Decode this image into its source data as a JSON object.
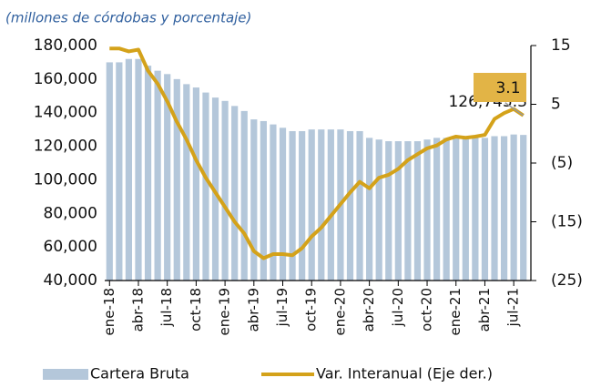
{
  "chart_data": {
    "type": "bar_line",
    "subtitle": "(millones de córdobas y porcentaje)",
    "categories": [
      "ene-18",
      null,
      null,
      "abr-18",
      null,
      null,
      "jul-18",
      null,
      null,
      "oct-18",
      null,
      null,
      "ene-19",
      null,
      null,
      "abr-19",
      null,
      null,
      "jul-19",
      null,
      null,
      "oct-19",
      null,
      null,
      "ene-20",
      null,
      null,
      "abr-20",
      null,
      null,
      "jul-20",
      null,
      null,
      "oct-20",
      null,
      null,
      "ene-21",
      null,
      null,
      "abr-21",
      null,
      null,
      "jul-21",
      null
    ],
    "series": [
      {
        "name": "Cartera Bruta",
        "color": "#b4c7da",
        "axis": "y",
        "values": [
          170000,
          170000,
          172000,
          172000,
          168000,
          165000,
          163000,
          160000,
          157000,
          155000,
          152000,
          149000,
          147000,
          144000,
          141000,
          136000,
          135000,
          133000,
          131000,
          129000,
          129000,
          130000,
          130000,
          130000,
          130000,
          129000,
          129000,
          125000,
          124000,
          123000,
          123000,
          123000,
          123000,
          124000,
          125000,
          125000,
          125000,
          125000,
          125000,
          125000,
          126000,
          126000,
          127000,
          126745.3
        ],
        "value_labels": [
          null,
          null,
          null,
          null,
          null,
          null,
          null,
          null,
          null,
          null,
          null,
          null,
          null,
          null,
          null,
          null,
          null,
          null,
          null,
          null,
          null,
          null,
          null,
          null,
          null,
          null,
          null,
          null,
          null,
          null,
          null,
          null,
          null,
          null,
          null,
          null,
          null,
          null,
          null,
          null,
          null,
          null,
          null,
          "126,745.3"
        ]
      },
      {
        "name": "Var. Interanual (Eje der.)",
        "color": "#d4a21a",
        "axis": "y2",
        "values": [
          14.5,
          14.5,
          14,
          14.3,
          10.7,
          8.5,
          5.5,
          2,
          -1,
          -4.5,
          -7.5,
          -10,
          -12.5,
          -15,
          -17,
          -20,
          -21.2,
          -20.5,
          -20.5,
          -20.7,
          -19.5,
          -17.5,
          -16,
          -14,
          -12,
          -10,
          -8.2,
          -9.3,
          -7.5,
          -7,
          -6,
          -4.5,
          -3.5,
          -2.5,
          -2,
          -1,
          -0.5,
          -0.7,
          -0.5,
          -0.2,
          2.5,
          3.5,
          4.2,
          3.1
        ],
        "value_labels": [
          null,
          null,
          null,
          null,
          null,
          null,
          null,
          null,
          null,
          null,
          null,
          null,
          null,
          null,
          null,
          null,
          null,
          null,
          null,
          null,
          null,
          null,
          null,
          null,
          null,
          null,
          null,
          null,
          null,
          null,
          null,
          null,
          null,
          null,
          null,
          null,
          null,
          null,
          null,
          null,
          null,
          null,
          null,
          "3.1"
        ]
      }
    ],
    "ylim": [
      40000,
      180000
    ],
    "yticks": [
      {
        "value": 40000,
        "label": "40,000"
      },
      {
        "value": 60000,
        "label": "60,000"
      },
      {
        "value": 80000,
        "label": "80,000"
      },
      {
        "value": 100000,
        "label": "100,000"
      },
      {
        "value": 120000,
        "label": "120,000"
      },
      {
        "value": 140000,
        "label": "140,000"
      },
      {
        "value": 160000,
        "label": "160,000"
      },
      {
        "value": 180000,
        "label": "180,000"
      }
    ],
    "y2lim": [
      -25,
      15
    ],
    "y2ticks": [
      {
        "value": -25,
        "label": "(25)"
      },
      {
        "value": -15,
        "label": "(15)"
      },
      {
        "value": -5,
        "label": "(5)"
      },
      5,
      15
    ],
    "label_box_color": "#e2b446",
    "grid": false,
    "legend": "bottom"
  }
}
